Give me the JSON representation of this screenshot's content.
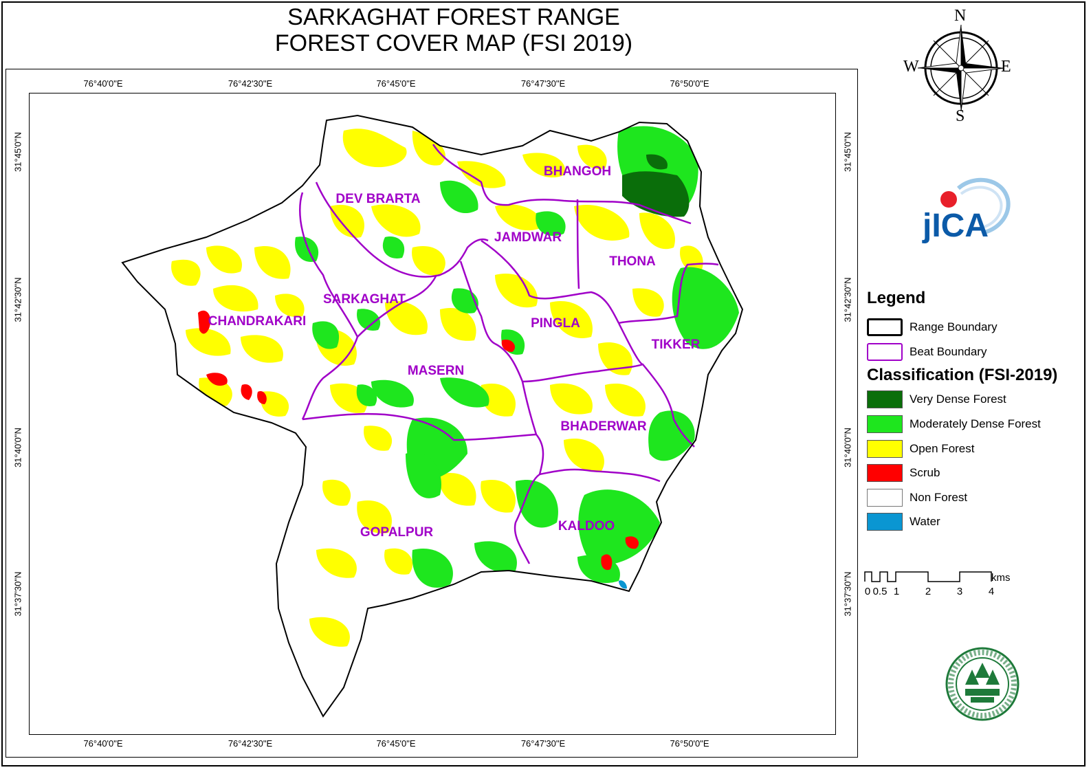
{
  "title": {
    "line1": "SARKAGHAT FOREST RANGE",
    "line2": "FOREST COVER MAP (FSI 2019)"
  },
  "graticule": {
    "longitudes": [
      "76°40'0\"E",
      "76°42'30\"E",
      "76°45'0\"E",
      "76°47'30\"E",
      "76°50'0\"E"
    ],
    "latitudes": [
      "31°45'0\"N",
      "31°42'30\"N",
      "31°40'0\"N",
      "31°37'30\"N"
    ]
  },
  "beats": {
    "bhangoh": "BHANGOH",
    "dev_brarta": "DEV BRARTA",
    "jamdwar": "JAMDWAR",
    "thona": "THONA",
    "sarkaghat": "SARKAGHAT",
    "chandrakari": "CHANDRAKARI",
    "pingla": "PINGLA",
    "tikker": "TIKKER",
    "masern": "MASERN",
    "bhaderwar": "BHADERWAR",
    "gopalpur": "GOPALPUR",
    "kaldoo": "KALDOO"
  },
  "compass": {
    "n": "N",
    "s": "S",
    "e": "E",
    "w": "W",
    "icon": "compass-rose-icon"
  },
  "logos": {
    "jica": "JICA",
    "seal_icon": "forest-department-seal-icon"
  },
  "legend": {
    "title": "Legend",
    "range_boundary": "Range Boundary",
    "beat_boundary": "Beat Boundary",
    "classification_title": "Classification (FSI-2019)",
    "classes": [
      {
        "label": "Very Dense Forest",
        "color": "#0a6e0a"
      },
      {
        "label": "Moderately Dense Forest",
        "color": "#1ee61e"
      },
      {
        "label": "Open Forest",
        "color": "#ffff00"
      },
      {
        "label": "Scrub",
        "color": "#ff0000"
      },
      {
        "label": "Non Forest",
        "color": "#ffffff"
      },
      {
        "label": "Water",
        "color": "#0a96d2"
      }
    ],
    "boundary_colors": {
      "range": "#000000",
      "beat": "#a000c8"
    }
  },
  "scale_bar": {
    "labels": [
      "0",
      "0.5",
      "1",
      "2",
      "3",
      "4"
    ],
    "unit": "kms"
  }
}
